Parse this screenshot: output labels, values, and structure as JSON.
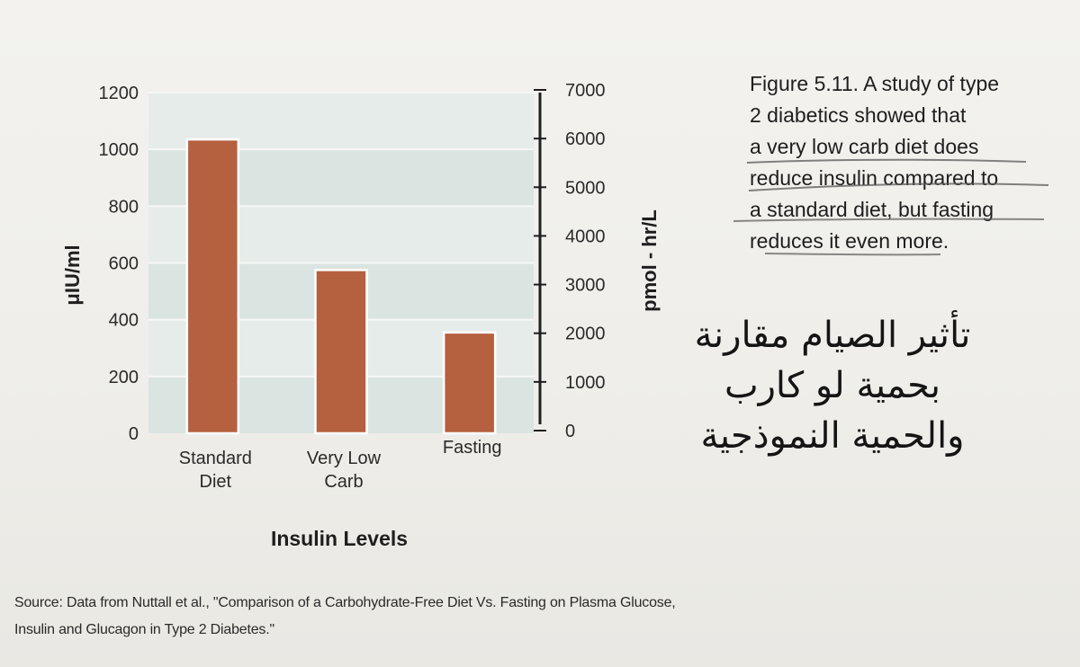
{
  "chart_data": {
    "type": "bar",
    "title": "Insulin Levels",
    "categories": [
      "Standard Diet",
      "Very Low Carb",
      "Fasting"
    ],
    "category_lines": [
      [
        "Standard",
        "Diet"
      ],
      [
        "Very Low",
        "Carb"
      ],
      [
        "Fasting"
      ]
    ],
    "values": [
      1035,
      575,
      355
    ],
    "ylabel": "μIU/ml",
    "ylim": [
      0,
      1200
    ],
    "yticks": [
      0,
      200,
      400,
      600,
      800,
      1000,
      1200
    ],
    "y2label": "pmol - hr/L",
    "y2lim": [
      0,
      7000
    ],
    "y2ticks": [
      0,
      1000,
      2000,
      3000,
      4000,
      5000,
      6000,
      7000
    ],
    "bar_color": "#b5603f",
    "band_colors": [
      "#dae4e1",
      "#e6ece9"
    ],
    "grid": true
  },
  "caption": {
    "lines": [
      "Figure 5.11. A study of type",
      "2 diabetics showed that",
      "a very low carb diet does",
      "reduce insulin compared to",
      "a standard diet, but fasting",
      "reduces it even more."
    ]
  },
  "annotation": {
    "lines": [
      "تأثير الصيام مقارنة",
      "بحمية لو كارب",
      "والحمية النموذجية"
    ]
  },
  "source": {
    "lines": [
      "Source: Data from Nuttall et al., \"Comparison of a Carbohydrate-Free Diet Vs. Fasting on Plasma Glucose,",
      "Insulin and Glucagon in Type 2 Diabetes.\""
    ]
  }
}
